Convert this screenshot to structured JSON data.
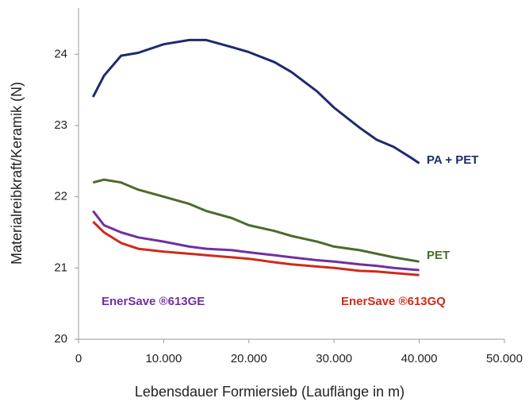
{
  "chart_data": {
    "type": "line",
    "x_label": "Lebensdauer Formiersieb (Lauflänge in m)",
    "y_label": "Materialreibkraft/Keramik (N)",
    "x": [
      1700,
      3000,
      5000,
      7000,
      10000,
      13000,
      15000,
      18000,
      20000,
      23000,
      25000,
      28000,
      30000,
      33000,
      35000,
      37000,
      39000,
      40000
    ],
    "series": [
      {
        "name": "PA + PET",
        "color": "#1f2a6e",
        "values": [
          23.4,
          23.7,
          23.98,
          24.02,
          24.14,
          24.2,
          24.2,
          24.1,
          24.03,
          23.89,
          23.75,
          23.48,
          23.25,
          22.97,
          22.8,
          22.7,
          22.55,
          22.47
        ]
      },
      {
        "name": "PET",
        "color": "#4e6b2a",
        "values": [
          22.2,
          22.24,
          22.2,
          22.1,
          22.0,
          21.9,
          21.8,
          21.7,
          21.6,
          21.52,
          21.45,
          21.37,
          21.3,
          21.25,
          21.2,
          21.15,
          21.11,
          21.09
        ]
      },
      {
        "name": "EnerSave ®613GE",
        "color": "#7030a0",
        "values": [
          21.8,
          21.6,
          21.5,
          21.43,
          21.37,
          21.3,
          21.27,
          21.25,
          21.22,
          21.18,
          21.15,
          21.11,
          21.09,
          21.05,
          21.03,
          21.0,
          20.98,
          20.97
        ]
      },
      {
        "name": "EnerSave ®613GQ",
        "color": "#d02a1a",
        "values": [
          21.65,
          21.5,
          21.35,
          21.27,
          21.23,
          21.2,
          21.18,
          21.15,
          21.13,
          21.08,
          21.05,
          21.02,
          21.0,
          20.96,
          20.95,
          20.93,
          20.91,
          20.9
        ]
      }
    ],
    "xlim": [
      0,
      50000
    ],
    "ylim": [
      20,
      24.65
    ],
    "xticks": [
      0,
      {
        "value": 10000,
        "label": "10.000"
      },
      {
        "value": 20000,
        "label": "20.000"
      },
      {
        "value": 30000,
        "label": "30.000"
      },
      {
        "value": 40000,
        "label": "40.000"
      },
      {
        "value": 50000,
        "label": "50.000"
      }
    ],
    "yticks": [
      20,
      21,
      22,
      23,
      24
    ],
    "grid": false
  }
}
